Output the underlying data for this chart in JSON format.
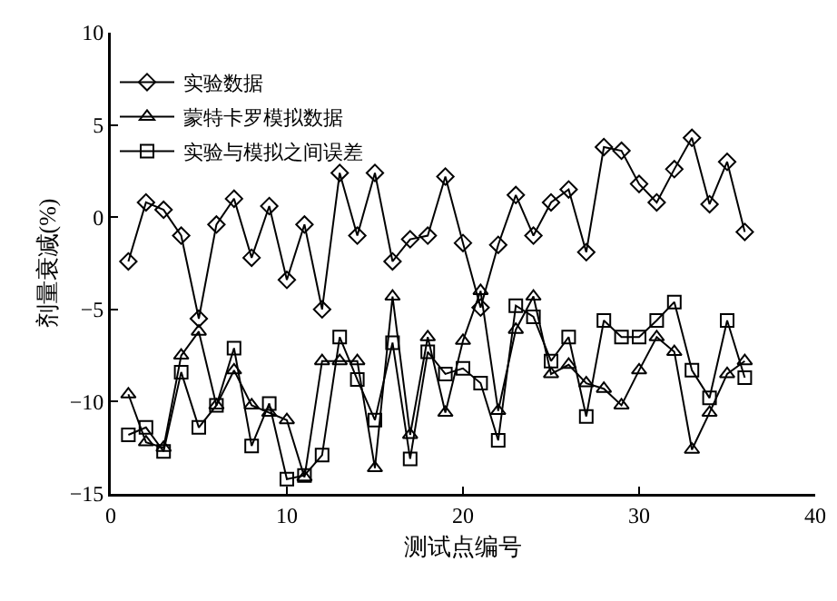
{
  "chart_data": {
    "type": "line",
    "xlabel": "测试点编号",
    "ylabel": "剂量衰减(%)",
    "x": [
      1,
      2,
      3,
      4,
      5,
      6,
      7,
      8,
      9,
      10,
      11,
      12,
      13,
      14,
      15,
      16,
      17,
      18,
      19,
      20,
      21,
      22,
      23,
      24,
      25,
      26,
      27,
      28,
      29,
      30,
      31,
      32,
      33,
      34,
      35,
      36
    ],
    "series": [
      {
        "name": "实验数据",
        "color": "#000000",
        "marker": "diamond",
        "values": [
          -2.4,
          0.8,
          0.4,
          -1.0,
          -5.5,
          -0.4,
          1.0,
          -2.2,
          0.6,
          -3.4,
          -0.4,
          -5.0,
          2.4,
          -1.0,
          2.4,
          -2.4,
          -1.2,
          -1.0,
          2.2,
          -1.4,
          -4.9,
          -1.5,
          1.2,
          -1.0,
          0.8,
          1.5,
          -1.9,
          3.8,
          3.6,
          1.8,
          0.8,
          2.6,
          4.3,
          0.7,
          3.0,
          -0.8
        ]
      },
      {
        "name": "蒙特卡罗模拟数据",
        "color": "#000000",
        "marker": "triangle",
        "values": [
          -9.6,
          -12.2,
          -12.5,
          -7.5,
          -6.2,
          -10.2,
          -8.3,
          -10.2,
          -10.6,
          -11.0,
          -14.1,
          -7.8,
          -7.8,
          -7.8,
          -13.6,
          -4.3,
          -11.8,
          -6.5,
          -10.6,
          -6.7,
          -4.0,
          -10.5,
          -6.1,
          -4.3,
          -8.5,
          -8.0,
          -9.0,
          -9.3,
          -10.2,
          -8.3,
          -6.5,
          -7.3,
          -12.6,
          -10.6,
          -8.5,
          -7.8
        ]
      },
      {
        "name": "实验与模拟之间误差",
        "color": "#000000",
        "marker": "square",
        "values": [
          -11.8,
          -11.4,
          -12.7,
          -8.4,
          -11.4,
          -10.2,
          -7.1,
          -12.4,
          -10.1,
          -14.2,
          -14.0,
          -12.9,
          -6.5,
          -8.8,
          -11.0,
          -6.8,
          -13.1,
          -7.3,
          -8.5,
          -8.2,
          -9.0,
          -12.1,
          -4.8,
          -5.4,
          -7.8,
          -6.5,
          -10.8,
          -5.6,
          -6.5,
          -6.5,
          -5.6,
          -4.6,
          -8.3,
          -9.8,
          -5.6,
          -8.7
        ]
      }
    ],
    "xlim": [
      0,
      40
    ],
    "xticks": [
      0,
      10,
      20,
      30,
      40
    ],
    "ylim": [
      -15,
      10
    ],
    "yticks": [
      -15,
      -10,
      -5,
      0,
      5,
      10
    ],
    "grid": false,
    "legend": "top left",
    "line_style": "solid"
  }
}
